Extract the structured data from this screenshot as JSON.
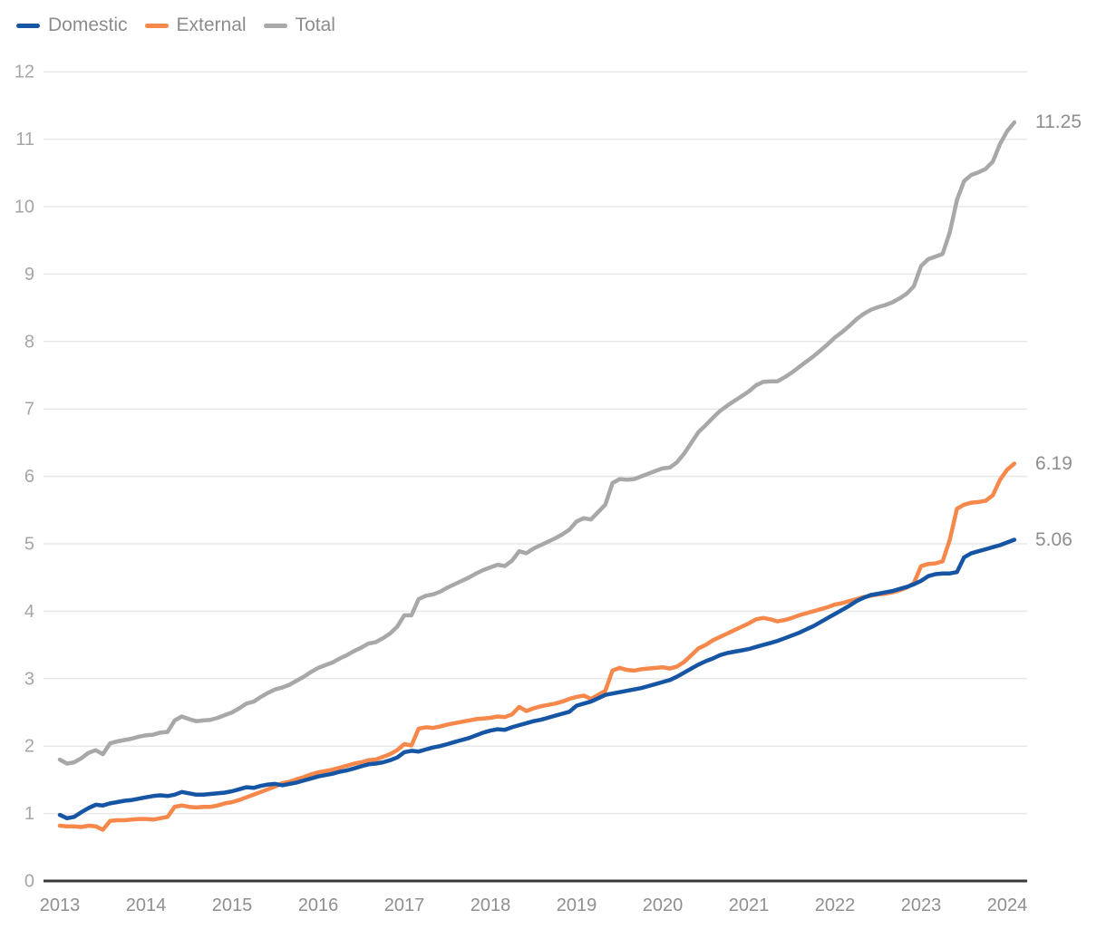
{
  "chart_data": {
    "type": "line",
    "title": "",
    "x_start": "2013-01",
    "x_end": "2024-02",
    "frequency": "monthly",
    "x_tick_labels": [
      "2013",
      "2014",
      "2015",
      "2016",
      "2017",
      "2018",
      "2019",
      "2020",
      "2021",
      "2022",
      "2023",
      "2024"
    ],
    "y_tick_labels": [
      "0",
      "1",
      "2",
      "3",
      "4",
      "5",
      "6",
      "7",
      "8",
      "9",
      "10",
      "11",
      "12"
    ],
    "ylim": [
      0,
      12
    ],
    "grid": "horizontal",
    "legend_position": "top-left",
    "axis_colors": {
      "gridline": "#e8e8e8",
      "baseline": "#3a3a3a",
      "y_tick_text": "#a6a6a6",
      "x_tick_text": "#8f8f8f"
    },
    "series": [
      {
        "name": "Domestic",
        "color": "#1655a3",
        "end_label": "5.06",
        "values": [
          0.98,
          0.93,
          0.95,
          1.02,
          1.08,
          1.13,
          1.12,
          1.15,
          1.17,
          1.19,
          1.2,
          1.22,
          1.24,
          1.26,
          1.27,
          1.26,
          1.28,
          1.32,
          1.3,
          1.28,
          1.28,
          1.29,
          1.3,
          1.31,
          1.33,
          1.36,
          1.39,
          1.38,
          1.41,
          1.43,
          1.44,
          1.42,
          1.44,
          1.46,
          1.49,
          1.52,
          1.55,
          1.57,
          1.59,
          1.62,
          1.64,
          1.67,
          1.7,
          1.73,
          1.74,
          1.76,
          1.79,
          1.83,
          1.91,
          1.93,
          1.92,
          1.95,
          1.98,
          2.0,
          2.03,
          2.06,
          2.09,
          2.12,
          2.16,
          2.2,
          2.23,
          2.25,
          2.24,
          2.28,
          2.31,
          2.34,
          2.37,
          2.39,
          2.42,
          2.45,
          2.48,
          2.51,
          2.6,
          2.63,
          2.66,
          2.71,
          2.76,
          2.78,
          2.8,
          2.82,
          2.84,
          2.86,
          2.89,
          2.92,
          2.95,
          2.98,
          3.03,
          3.09,
          3.15,
          3.21,
          3.26,
          3.3,
          3.35,
          3.38,
          3.4,
          3.42,
          3.44,
          3.47,
          3.5,
          3.53,
          3.56,
          3.6,
          3.64,
          3.68,
          3.73,
          3.78,
          3.84,
          3.9,
          3.96,
          4.02,
          4.08,
          4.15,
          4.2,
          4.24,
          4.26,
          4.28,
          4.3,
          4.33,
          4.36,
          4.4,
          4.45,
          4.52,
          4.55,
          4.56,
          4.56,
          4.58,
          4.8,
          4.86,
          4.89,
          4.92,
          4.95,
          4.98,
          5.02,
          5.06
        ]
      },
      {
        "name": "External",
        "color": "#f6884c",
        "end_label": "6.19",
        "values": [
          0.82,
          0.81,
          0.81,
          0.8,
          0.82,
          0.81,
          0.76,
          0.89,
          0.9,
          0.9,
          0.91,
          0.92,
          0.92,
          0.91,
          0.93,
          0.95,
          1.1,
          1.12,
          1.1,
          1.09,
          1.1,
          1.1,
          1.12,
          1.15,
          1.17,
          1.2,
          1.24,
          1.28,
          1.32,
          1.36,
          1.4,
          1.45,
          1.47,
          1.51,
          1.54,
          1.58,
          1.61,
          1.63,
          1.65,
          1.68,
          1.71,
          1.74,
          1.76,
          1.79,
          1.8,
          1.84,
          1.88,
          1.94,
          2.03,
          2.01,
          2.26,
          2.28,
          2.27,
          2.29,
          2.32,
          2.34,
          2.36,
          2.38,
          2.4,
          2.41,
          2.42,
          2.44,
          2.43,
          2.47,
          2.58,
          2.52,
          2.56,
          2.59,
          2.61,
          2.63,
          2.66,
          2.7,
          2.73,
          2.75,
          2.7,
          2.76,
          2.82,
          3.12,
          3.16,
          3.13,
          3.12,
          3.14,
          3.15,
          3.16,
          3.17,
          3.15,
          3.18,
          3.25,
          3.35,
          3.45,
          3.5,
          3.57,
          3.62,
          3.67,
          3.72,
          3.77,
          3.82,
          3.88,
          3.9,
          3.88,
          3.85,
          3.87,
          3.9,
          3.94,
          3.97,
          4.0,
          4.03,
          4.06,
          4.1,
          4.12,
          4.15,
          4.18,
          4.21,
          4.23,
          4.25,
          4.26,
          4.28,
          4.31,
          4.35,
          4.42,
          4.67,
          4.7,
          4.71,
          4.74,
          5.06,
          5.52,
          5.58,
          5.61,
          5.62,
          5.64,
          5.72,
          5.95,
          6.1,
          6.19
        ]
      },
      {
        "name": "Total",
        "color": "#a8a8a8",
        "end_label": "11.25",
        "values": [
          1.8,
          1.74,
          1.76,
          1.82,
          1.9,
          1.94,
          1.88,
          2.04,
          2.07,
          2.09,
          2.11,
          2.14,
          2.16,
          2.17,
          2.2,
          2.21,
          2.38,
          2.44,
          2.4,
          2.37,
          2.38,
          2.39,
          2.42,
          2.46,
          2.5,
          2.56,
          2.63,
          2.66,
          2.73,
          2.79,
          2.84,
          2.87,
          2.91,
          2.97,
          3.03,
          3.1,
          3.16,
          3.2,
          3.24,
          3.3,
          3.35,
          3.41,
          3.46,
          3.52,
          3.54,
          3.6,
          3.67,
          3.77,
          3.94,
          3.94,
          4.18,
          4.23,
          4.25,
          4.29,
          4.35,
          4.4,
          4.45,
          4.5,
          4.56,
          4.61,
          4.65,
          4.69,
          4.67,
          4.75,
          4.89,
          4.86,
          4.93,
          4.98,
          5.03,
          5.08,
          5.14,
          5.21,
          5.33,
          5.38,
          5.36,
          5.47,
          5.58,
          5.9,
          5.96,
          5.95,
          5.96,
          6.0,
          6.04,
          6.08,
          6.12,
          6.13,
          6.21,
          6.34,
          6.5,
          6.66,
          6.76,
          6.87,
          6.97,
          7.05,
          7.12,
          7.19,
          7.26,
          7.35,
          7.4,
          7.41,
          7.41,
          7.47,
          7.54,
          7.62,
          7.7,
          7.78,
          7.87,
          7.96,
          8.06,
          8.14,
          8.23,
          8.33,
          8.41,
          8.47,
          8.51,
          8.54,
          8.58,
          8.64,
          8.71,
          8.82,
          9.12,
          9.22,
          9.26,
          9.3,
          9.62,
          10.1,
          10.38,
          10.47,
          10.51,
          10.56,
          10.67,
          10.93,
          11.12,
          11.25
        ]
      }
    ]
  }
}
